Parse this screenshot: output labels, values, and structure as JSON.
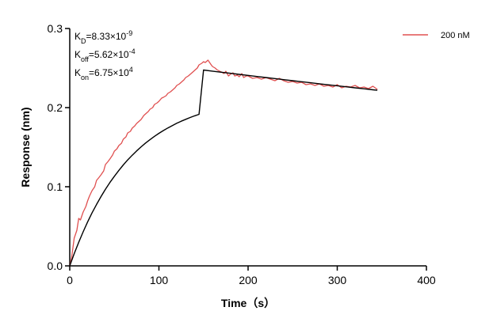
{
  "chart_data": {
    "type": "line",
    "title": "",
    "xlabel": "Time（s）",
    "ylabel": "Response (nm)",
    "xlim": [
      0,
      400
    ],
    "ylim": [
      0,
      0.3
    ],
    "x_ticks": [
      0,
      100,
      200,
      300,
      400
    ],
    "y_ticks": [
      0.0,
      0.1,
      0.2,
      0.3
    ],
    "x_tick_labels": [
      "0",
      "100",
      "200",
      "300",
      "400"
    ],
    "y_tick_labels": [
      "0.0",
      "0.1",
      "0.2",
      "0.3"
    ],
    "grid": false,
    "legend": {
      "placement": "top-right",
      "entries": [
        "200 nM"
      ]
    },
    "annotations": {
      "kd": {
        "base": "K",
        "sub": "D",
        "value": "=8.33×10",
        "sup": "-9"
      },
      "koff": {
        "base": "K",
        "sub": "off",
        "value": "=5.62×10",
        "sup": "-4"
      },
      "kon": {
        "base": "K",
        "sub": "on",
        "value": "=6.75×10",
        "sup": "4"
      }
    },
    "colors": {
      "measured": "#e05050",
      "fit": "#000000"
    },
    "series": [
      {
        "name": "200 nM",
        "role": "measured",
        "x": [
          0,
          2,
          5,
          8,
          10,
          12,
          15,
          18,
          20,
          22,
          25,
          28,
          30,
          33,
          35,
          38,
          40,
          43,
          45,
          48,
          50,
          53,
          55,
          58,
          60,
          63,
          65,
          68,
          70,
          73,
          75,
          78,
          80,
          83,
          85,
          88,
          90,
          93,
          95,
          98,
          100,
          103,
          105,
          108,
          110,
          113,
          115,
          118,
          120,
          123,
          125,
          128,
          130,
          133,
          135,
          138,
          140,
          143,
          145,
          148,
          150,
          152,
          155,
          158,
          160,
          163,
          165,
          168,
          170,
          173,
          175,
          178,
          180,
          183,
          185,
          188,
          190,
          193,
          195,
          198,
          200,
          205,
          210,
          215,
          220,
          225,
          230,
          235,
          240,
          245,
          250,
          255,
          260,
          265,
          270,
          275,
          280,
          285,
          290,
          295,
          300,
          305,
          310,
          315,
          320,
          325,
          330,
          335,
          340,
          345
        ],
        "y": [
          0.0,
          0.01,
          0.035,
          0.045,
          0.06,
          0.058,
          0.068,
          0.075,
          0.082,
          0.088,
          0.095,
          0.1,
          0.108,
          0.112,
          0.115,
          0.12,
          0.128,
          0.132,
          0.135,
          0.14,
          0.145,
          0.148,
          0.152,
          0.155,
          0.16,
          0.163,
          0.168,
          0.17,
          0.174,
          0.177,
          0.18,
          0.183,
          0.185,
          0.19,
          0.192,
          0.195,
          0.198,
          0.2,
          0.204,
          0.206,
          0.208,
          0.212,
          0.213,
          0.215,
          0.218,
          0.22,
          0.222,
          0.225,
          0.228,
          0.23,
          0.232,
          0.235,
          0.238,
          0.24,
          0.242,
          0.245,
          0.247,
          0.25,
          0.254,
          0.256,
          0.258,
          0.257,
          0.26,
          0.255,
          0.252,
          0.25,
          0.248,
          0.246,
          0.245,
          0.243,
          0.246,
          0.24,
          0.242,
          0.244,
          0.24,
          0.241,
          0.239,
          0.243,
          0.238,
          0.24,
          0.24,
          0.237,
          0.238,
          0.236,
          0.238,
          0.236,
          0.234,
          0.237,
          0.234,
          0.232,
          0.233,
          0.231,
          0.232,
          0.229,
          0.23,
          0.228,
          0.23,
          0.227,
          0.228,
          0.226,
          0.229,
          0.225,
          0.227,
          0.226,
          0.228,
          0.225,
          0.226,
          0.224,
          0.227,
          0.223
        ]
      },
      {
        "name": "",
        "role": "fit",
        "x": [
          0,
          5,
          10,
          15,
          20,
          25,
          30,
          35,
          40,
          45,
          50,
          55,
          60,
          65,
          70,
          75,
          80,
          85,
          90,
          95,
          100,
          105,
          110,
          115,
          120,
          125,
          130,
          135,
          140,
          145,
          150,
          160,
          170,
          180,
          190,
          200,
          210,
          220,
          230,
          240,
          250,
          260,
          270,
          280,
          290,
          300,
          310,
          320,
          330,
          340,
          345
        ],
        "y": [
          0.0,
          0.0154,
          0.0297,
          0.043,
          0.0554,
          0.0669,
          0.0776,
          0.0875,
          0.0967,
          0.1053,
          0.1132,
          0.1206,
          0.1275,
          0.1339,
          0.1398,
          0.1453,
          0.1504,
          0.1552,
          0.1596,
          0.1637,
          0.1675,
          0.171,
          0.1743,
          0.1773,
          0.1802,
          0.1828,
          0.1852,
          0.1875,
          0.1896,
          0.1915,
          0.2475,
          0.2461,
          0.2447,
          0.2434,
          0.242,
          0.2407,
          0.2393,
          0.238,
          0.2367,
          0.2353,
          0.234,
          0.2327,
          0.2314,
          0.2301,
          0.2288,
          0.2276,
          0.2263,
          0.225,
          0.2238,
          0.2225,
          0.2219
        ]
      }
    ]
  }
}
